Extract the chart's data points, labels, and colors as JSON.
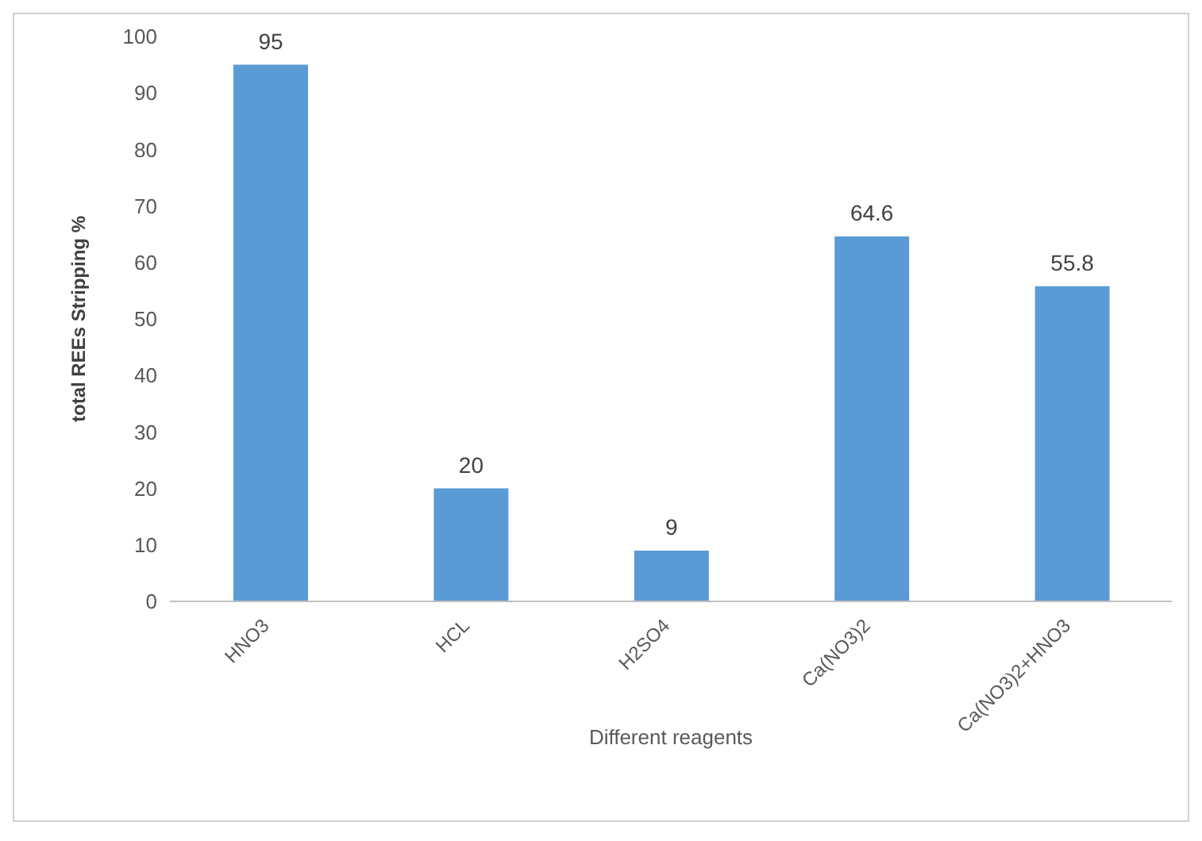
{
  "chart_data": {
    "type": "bar",
    "xlabel": "Different reagents",
    "ylabel": "total REEs Stripping %",
    "categories": [
      "HNO3",
      "HCL",
      "H2SO4",
      "Ca(NO3)2",
      "Ca(NO3)2+HNO3"
    ],
    "values": [
      95,
      20,
      9,
      64.6,
      55.8
    ],
    "color": "#5b9bd5",
    "ylim": [
      0,
      100
    ],
    "yticks": [
      0,
      10,
      20,
      30,
      40,
      50,
      60,
      70,
      80,
      90,
      100
    ],
    "grid": false,
    "data_labels": true
  }
}
